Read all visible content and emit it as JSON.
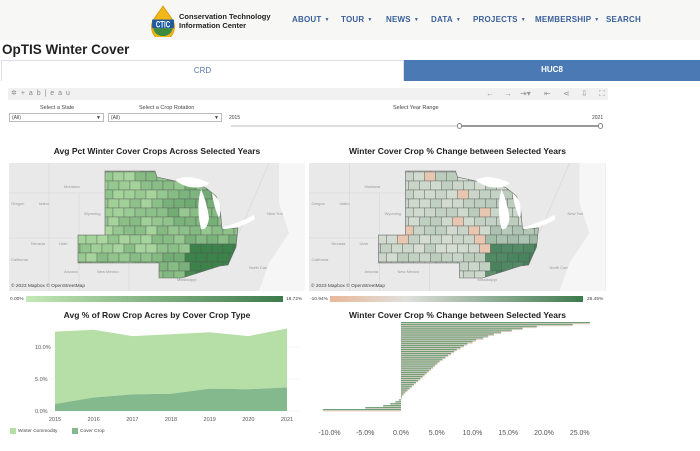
{
  "header": {
    "logo_text": "CTIC",
    "org_line1": "Conservation Technology",
    "org_line2": "Information Center",
    "nav": [
      {
        "label": "ABOUT",
        "dropdown": true
      },
      {
        "label": "TOUR",
        "dropdown": true
      },
      {
        "label": "NEWS",
        "dropdown": true
      },
      {
        "label": "DATA",
        "dropdown": true
      },
      {
        "label": "PROJECTS",
        "dropdown": true
      },
      {
        "label": "MEMBERSHIP",
        "dropdown": true
      },
      {
        "label": "SEARCH",
        "dropdown": false
      }
    ]
  },
  "page_title": "OpTIS Winter Cover",
  "tabs": [
    {
      "label": "CRD",
      "active": false
    },
    {
      "label": "HUC8",
      "active": true
    }
  ],
  "toolbar": {
    "brand": "+ a b | e a u",
    "icons": [
      "undo-icon",
      "redo-icon",
      "revert-icon",
      "reset-icon",
      "share-icon",
      "download-icon",
      "fullscreen-icon"
    ]
  },
  "filters": {
    "state": {
      "label": "Select a State",
      "value": "(All)"
    },
    "rotation": {
      "label": "Select a Crop Rotation",
      "value": "(All)"
    },
    "years": {
      "label": "Select Year Range",
      "min": "2015",
      "max": "2021",
      "selected_start_fraction": 0.55,
      "selected_end_fraction": 1.0
    }
  },
  "maps": {
    "left": {
      "title": "Avg Pct Winter Cover Crops Across Selected Years",
      "attribution": "© 2023 Mapbox  © OpenStreetMap",
      "legend_min": "0.00%",
      "legend_max": "18.72%"
    },
    "right": {
      "title": "Winter Cover Crop % Change between Selected Years",
      "attribution": "© 2023 Mapbox  © OpenStreetMap",
      "legend_min": "-10.94%",
      "legend_max": "26.45%"
    },
    "place_labels": [
      "Montana",
      "Idaho",
      "Wyoming",
      "Nevada",
      "Utah",
      "Arizona",
      "New Mexico",
      "New York",
      "Arkansas",
      "Mississippi",
      "North Carolina",
      "Oregon",
      "California"
    ]
  },
  "colors": {
    "accent": "#4a79b3",
    "green_light": "#b5dfa6",
    "green_dark": "#3d7a4c",
    "orange": "#e8b898",
    "nav": "#3a5f9a"
  },
  "chart_data": [
    {
      "type": "area",
      "title": "Avg % of Row Crop Acres by Cover Crop Type",
      "categories": [
        "2015",
        "2016",
        "2017",
        "2018",
        "2019",
        "2020",
        "2021"
      ],
      "series": [
        {
          "name": "Winter Commodity",
          "values": [
            11.3,
            10.6,
            9.1,
            9.3,
            8.8,
            8.3,
            9.2
          ],
          "color": "#b5dfa6"
        },
        {
          "name": "Cover Crop",
          "values": [
            1.1,
            2.1,
            2.6,
            2.7,
            3.5,
            3.4,
            3.7
          ],
          "color": "#84b98e"
        }
      ],
      "stacked": true,
      "yticks": [
        "0.0%",
        "5.0%",
        "10.0%"
      ],
      "ylim": [
        0,
        13.5
      ]
    },
    {
      "type": "bar",
      "orientation": "horizontal-sorted",
      "title": "Winter Cover Crop % Change between Selected Years",
      "values": [
        26.45,
        24,
        19,
        17,
        15.5,
        14,
        13,
        12.2,
        11.5,
        10.5,
        10,
        9.3,
        8.8,
        8.3,
        7.8,
        7.4,
        7,
        6.6,
        6.2,
        5.8,
        5.4,
        5.1,
        4.8,
        4.5,
        4.2,
        3.9,
        3.6,
        3.3,
        3,
        2.7,
        2.4,
        2.1,
        1.8,
        1.5,
        1.2,
        0.9,
        0.6,
        0.35,
        0.15,
        0,
        -0.3,
        -0.8,
        -1.5,
        -2.5,
        -5,
        -10.94
      ],
      "xticks": [
        -10,
        -5,
        0,
        5,
        10,
        15,
        20,
        25
      ],
      "xtick_labels": [
        "-10.0%",
        "-5.0%",
        "0.0%",
        "5.0%",
        "10.0%",
        "15.0%",
        "20.0%",
        "25.0%"
      ],
      "xlim": [
        -11,
        27.5
      ]
    }
  ]
}
